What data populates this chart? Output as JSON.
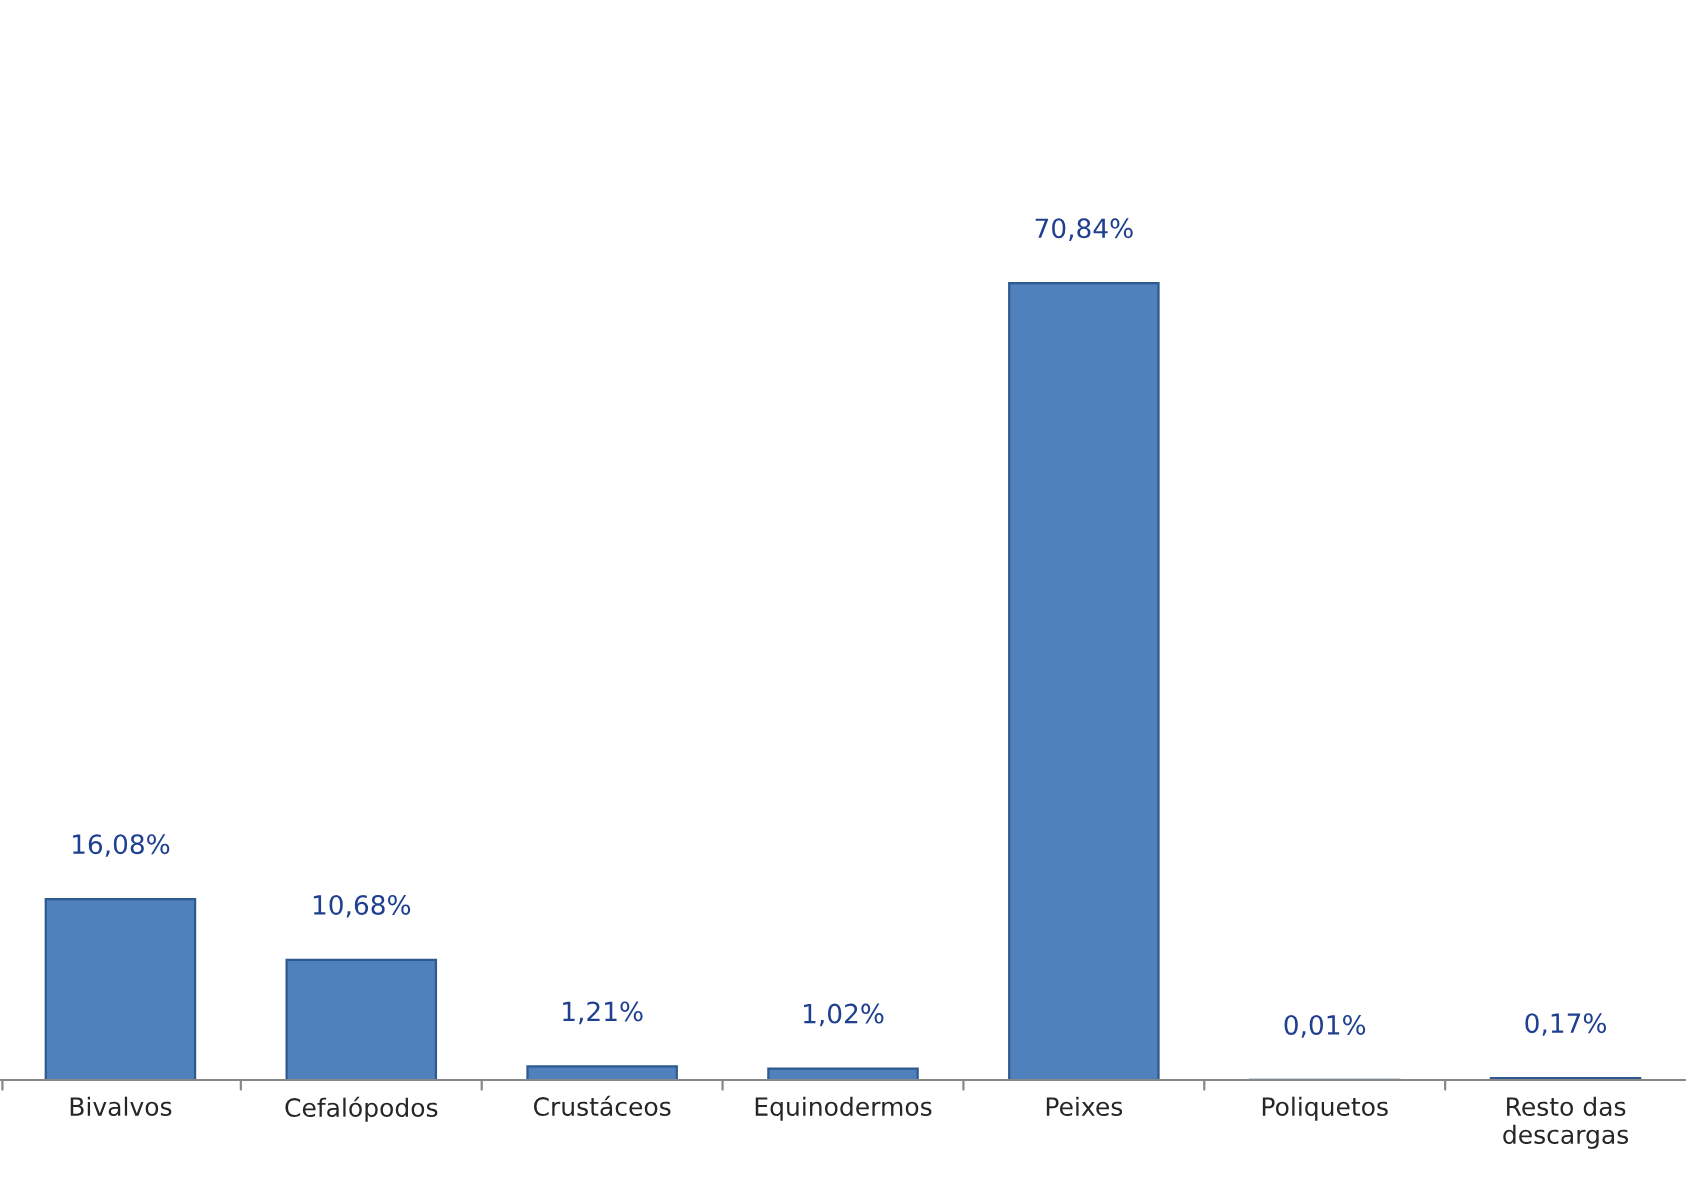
{
  "chart_data": {
    "type": "bar",
    "categories": [
      "Bivalvos",
      "Cefalópodos",
      "Crustáceos",
      "Equinodermos",
      "Peixes",
      "Poliquetos",
      "Resto das\ndescargas"
    ],
    "values": [
      16.08,
      10.68,
      1.21,
      1.02,
      70.84,
      0.01,
      0.17
    ],
    "value_labels": [
      "16,08%",
      "10,68%",
      "1,21%",
      "1,02%",
      "70,84%",
      "0,01%",
      "0,17%"
    ],
    "color": "#4f81bd",
    "grid": false,
    "legend": false
  }
}
